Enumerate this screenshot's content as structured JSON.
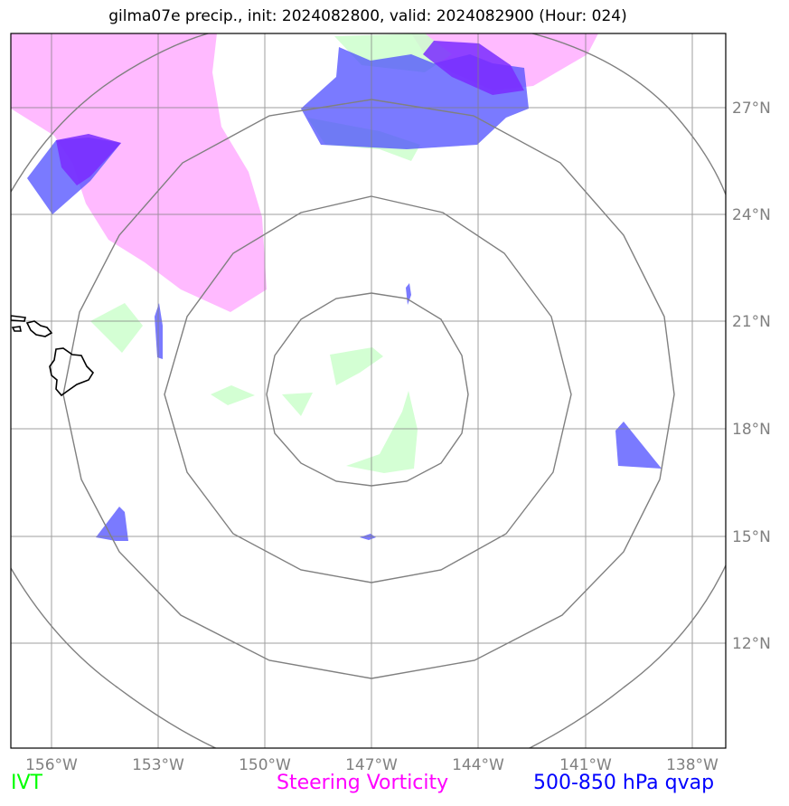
{
  "title": "gilma07e precip., init: 2024082800, valid: 2024082900 (Hour: 024)",
  "map": {
    "lon_labels": [
      "156°W",
      "153°W",
      "150°W",
      "147°W",
      "144°W",
      "141°W",
      "138°W"
    ],
    "lat_labels": [
      "27°N",
      "24°N",
      "21°N",
      "18°N",
      "15°N",
      "12°N"
    ],
    "gridline_color": "#808080",
    "range_ring_color": "#808080",
    "coastline_color": "#000000"
  },
  "legend": {
    "ivt": {
      "label": "IVT",
      "color": "#00ff00"
    },
    "vorticity": {
      "label": "Steering Vorticity",
      "color": "#ff00ff"
    },
    "qvap": {
      "label": "500-850 hPa qvap",
      "color": "#0000ff"
    }
  },
  "fields": {
    "ivt_color": "#ccffcc",
    "vorticity_color": "#ffb3ff",
    "qvap_color": "#4d4dff",
    "overlap_color": "#7a2bff"
  }
}
